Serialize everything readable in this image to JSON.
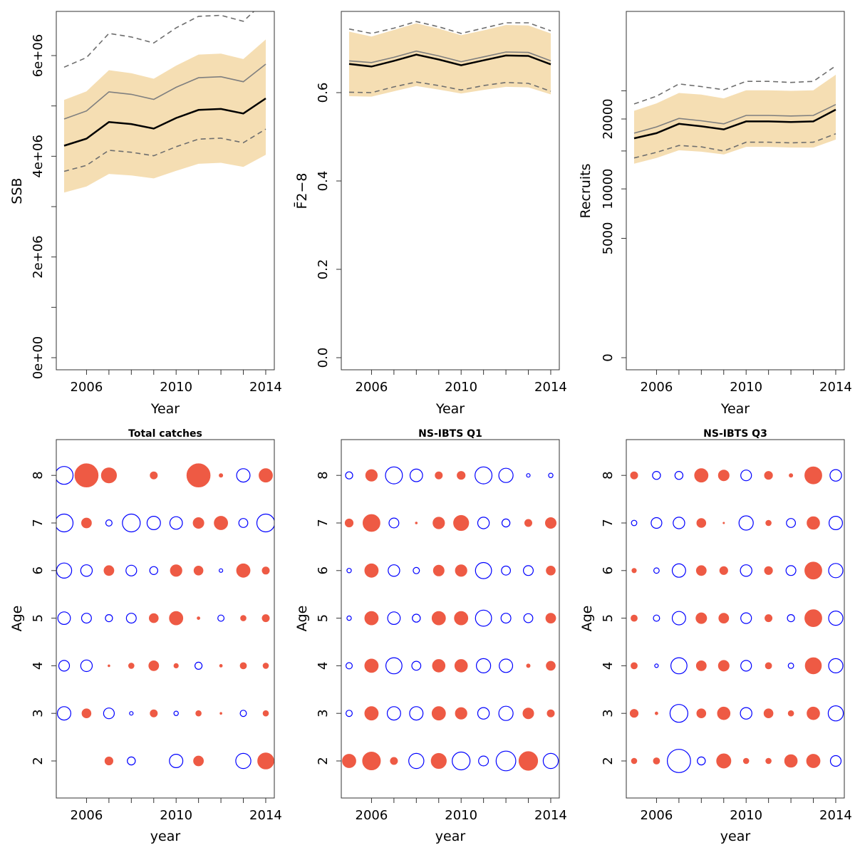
{
  "chart_data": [
    {
      "type": "line",
      "ylabel": "SSB",
      "xlabel": "Year",
      "x": [
        2005,
        2006,
        2007,
        2008,
        2009,
        2010,
        2011,
        2012,
        2013,
        2014
      ],
      "xticks": [
        "2006",
        "2010",
        "2014"
      ],
      "yticks": [
        "0e+00",
        "2e+06",
        "4e+06",
        "6e+06"
      ],
      "ylim": [
        0,
        6800000
      ],
      "band": {
        "color": "#f5deb3",
        "lower": [
          3280000,
          3400000,
          3650000,
          3620000,
          3560000,
          3710000,
          3850000,
          3870000,
          3790000,
          4030000
        ],
        "upper": [
          5120000,
          5290000,
          5710000,
          5650000,
          5540000,
          5800000,
          6020000,
          6040000,
          5930000,
          6320000
        ]
      },
      "series": [
        {
          "role": "estimate",
          "style": "solid-black",
          "values": [
            4210000,
            4350000,
            4680000,
            4640000,
            4550000,
            4760000,
            4920000,
            4940000,
            4850000,
            5150000
          ]
        },
        {
          "role": "grey",
          "style": "solid-grey",
          "values": [
            4740000,
            4900000,
            5280000,
            5230000,
            5130000,
            5370000,
            5560000,
            5580000,
            5480000,
            5830000
          ]
        },
        {
          "role": "upper",
          "style": "dashed",
          "values": [
            5770000,
            5960000,
            6440000,
            6370000,
            6250000,
            6550000,
            6780000,
            6800000,
            6680000,
            7100000
          ]
        },
        {
          "role": "lower",
          "style": "dashed",
          "values": [
            3700000,
            3820000,
            4120000,
            4080000,
            4010000,
            4190000,
            4340000,
            4360000,
            4270000,
            4540000
          ]
        }
      ]
    },
    {
      "type": "line",
      "ylabel": "F̄2−8",
      "xlabel": "Year",
      "x": [
        2005,
        2006,
        2007,
        2008,
        2009,
        2010,
        2011,
        2012,
        2013,
        2014
      ],
      "xticks": [
        "2006",
        "2010",
        "2014"
      ],
      "yticks": [
        "0.0",
        "0.2",
        "0.4",
        "0.6"
      ],
      "ylim": [
        0,
        0.78
      ],
      "band": {
        "color": "#f5deb3",
        "lower": [
          0.592,
          0.591,
          0.603,
          0.615,
          0.607,
          0.598,
          0.606,
          0.613,
          0.612,
          0.596
        ],
        "upper": [
          0.738,
          0.727,
          0.742,
          0.757,
          0.745,
          0.73,
          0.741,
          0.753,
          0.752,
          0.734
        ]
      },
      "series": [
        {
          "role": "estimate",
          "style": "solid-black",
          "values": [
            0.665,
            0.659,
            0.672,
            0.686,
            0.675,
            0.662,
            0.673,
            0.684,
            0.683,
            0.664
          ]
        },
        {
          "role": "grey",
          "style": "solid-grey",
          "values": [
            0.672,
            0.668,
            0.68,
            0.694,
            0.683,
            0.67,
            0.681,
            0.692,
            0.691,
            0.672
          ]
        },
        {
          "role": "upper",
          "style": "dashed",
          "values": [
            0.744,
            0.734,
            0.746,
            0.761,
            0.749,
            0.734,
            0.746,
            0.758,
            0.758,
            0.74
          ]
        },
        {
          "role": "lower",
          "style": "dashed",
          "values": [
            0.601,
            0.6,
            0.613,
            0.624,
            0.616,
            0.606,
            0.616,
            0.623,
            0.621,
            0.603
          ]
        }
      ]
    },
    {
      "type": "line",
      "ylabel": "Recruits",
      "xlabel": "Year",
      "x": [
        2005,
        2006,
        2007,
        2008,
        2009,
        2010,
        2011,
        2012,
        2013,
        2014
      ],
      "xticks": [
        "2006",
        "2010",
        "2014"
      ],
      "yticks": [
        "0",
        "5000",
        "10000",
        "20000"
      ],
      "ylim": [
        0,
        29500
      ],
      "band": {
        "color": "#f5deb3",
        "lower": [
          13200,
          14000,
          15100,
          14900,
          14500,
          15600,
          15600,
          15500,
          15500,
          16700
        ],
        "upper": [
          21400,
          22700,
          24600,
          24300,
          23600,
          25100,
          25100,
          25000,
          25100,
          28100
        ]
      },
      "series": [
        {
          "role": "estimate",
          "style": "solid-black",
          "values": [
            16900,
            17700,
            19200,
            18800,
            18300,
            19600,
            19600,
            19500,
            19600,
            21600
          ]
        },
        {
          "role": "grey",
          "style": "solid-grey",
          "values": [
            17700,
            18700,
            20100,
            19700,
            19200,
            20600,
            20600,
            20500,
            20600,
            22500
          ]
        },
        {
          "role": "upper",
          "style": "dashed",
          "values": [
            22600,
            24000,
            26300,
            25800,
            25200,
            26800,
            26800,
            26600,
            26800,
            29900
          ]
        },
        {
          "role": "lower",
          "style": "dashed",
          "values": [
            14000,
            14800,
            15800,
            15600,
            15000,
            16300,
            16300,
            16200,
            16300,
            17600
          ]
        }
      ]
    },
    {
      "type": "scatter",
      "title": "Total catches",
      "xlabel": "year",
      "ylabel": "Age",
      "x": [
        2005,
        2006,
        2007,
        2008,
        2009,
        2010,
        2011,
        2012,
        2013,
        2014
      ],
      "xticks": [
        "2006",
        "2010",
        "2014"
      ],
      "ages": [
        2,
        3,
        4,
        5,
        6,
        7,
        8
      ],
      "yticks": [
        "2",
        "3",
        "4",
        "5",
        "6",
        "7",
        "8"
      ],
      "positive_color": "#ee5a44",
      "negative_color": "#0000ff",
      "encoding": "bubble residual: filled red = positive, open blue = negative, size = magnitude",
      "residuals": {
        "2": [
          0,
          0,
          0.45,
          -0.45,
          0,
          -0.75,
          0.55,
          0,
          -0.85,
          0.9
        ],
        "3": [
          -0.75,
          0.5,
          -0.6,
          -0.2,
          0.4,
          -0.25,
          0.3,
          0.1,
          -0.35,
          0.3
        ],
        "4": [
          -0.6,
          -0.65,
          0.1,
          0.3,
          0.55,
          0.25,
          -0.4,
          0.15,
          0.35,
          0.3
        ],
        "5": [
          -0.7,
          -0.55,
          -0.4,
          -0.55,
          0.5,
          0.75,
          0.15,
          -0.35,
          0.3,
          0.4
        ],
        "6": [
          -0.85,
          -0.65,
          0.55,
          -0.6,
          -0.45,
          0.65,
          0.5,
          -0.2,
          0.75,
          0.4
        ],
        "7": [
          -1.0,
          0.55,
          -0.35,
          -1.0,
          -0.75,
          -0.7,
          0.6,
          0.75,
          -0.5,
          -1.0
        ],
        "8": [
          -1.0,
          1.3,
          0.85,
          0,
          0.4,
          0.0,
          1.3,
          0.2,
          -0.75,
          0.75
        ]
      }
    },
    {
      "type": "scatter",
      "title": "NS-IBTS Q1",
      "xlabel": "year",
      "ylabel": "Age",
      "x": [
        2005,
        2006,
        2007,
        2008,
        2009,
        2010,
        2011,
        2012,
        2013,
        2014
      ],
      "xticks": [
        "2006",
        "2010",
        "2014"
      ],
      "ages": [
        2,
        3,
        4,
        5,
        6,
        7,
        8
      ],
      "yticks": [
        "2",
        "3",
        "4",
        "5",
        "6",
        "7",
        "8"
      ],
      "positive_color": "#ee5a44",
      "negative_color": "#0000ff",
      "encoding": "bubble residual: filled red = positive, open blue = negative, size = magnitude",
      "residuals": {
        "2": [
          0.75,
          1.0,
          0.4,
          -0.85,
          0.85,
          -1.0,
          -0.55,
          -1.1,
          1.05,
          -0.85
        ],
        "3": [
          -0.35,
          0.75,
          -0.75,
          -0.75,
          0.75,
          0.65,
          -0.65,
          -0.8,
          0.6,
          0.4
        ],
        "4": [
          -0.35,
          0.75,
          -0.9,
          -0.5,
          0.7,
          0.7,
          -0.8,
          -0.75,
          0.2,
          0.5
        ],
        "5": [
          -0.25,
          0.75,
          -0.7,
          -0.45,
          0.75,
          0.75,
          -0.9,
          -0.55,
          -0.5,
          0.55
        ],
        "6": [
          -0.25,
          0.75,
          -0.65,
          -0.35,
          0.6,
          0.65,
          -0.9,
          -0.5,
          -0.55,
          0.5
        ],
        "7": [
          0.45,
          0.95,
          -0.55,
          0.1,
          0.65,
          0.85,
          -0.65,
          -0.45,
          0.4,
          0.6
        ],
        "8": [
          -0.4,
          0.65,
          -0.95,
          -0.7,
          0.4,
          0.45,
          -0.95,
          -0.8,
          -0.2,
          -0.25
        ]
      }
    },
    {
      "type": "scatter",
      "title": "NS-IBTS Q3",
      "xlabel": "year",
      "ylabel": "Age",
      "x": [
        2005,
        2006,
        2007,
        2008,
        2009,
        2010,
        2011,
        2012,
        2013,
        2014
      ],
      "xticks": [
        "2006",
        "2010",
        "2014"
      ],
      "ages": [
        2,
        3,
        4,
        5,
        6,
        7,
        8
      ],
      "yticks": [
        "2",
        "3",
        "4",
        "5",
        "6",
        "7",
        "8"
      ],
      "positive_color": "#ee5a44",
      "negative_color": "#0000ff",
      "encoding": "bubble residual: filled red = positive, open blue = negative, size = magnitude",
      "residuals": {
        "2": [
          0.3,
          0.35,
          -1.3,
          -0.45,
          0.8,
          0.3,
          0.3,
          0.7,
          0.75,
          -0.6
        ],
        "3": [
          0.45,
          0.15,
          -1.0,
          0.5,
          0.7,
          -0.65,
          0.5,
          0.3,
          0.7,
          -0.85
        ],
        "4": [
          0.35,
          -0.2,
          -0.9,
          0.55,
          0.6,
          -0.6,
          0.35,
          -0.3,
          0.9,
          -0.8
        ],
        "5": [
          0.35,
          -0.35,
          -0.75,
          0.6,
          0.55,
          -0.6,
          0.4,
          -0.4,
          0.95,
          -0.8
        ],
        "6": [
          0.25,
          -0.3,
          -0.75,
          0.55,
          0.45,
          -0.65,
          0.45,
          -0.55,
          0.95,
          -0.8
        ],
        "7": [
          -0.3,
          -0.6,
          -0.65,
          0.5,
          0.05,
          -0.8,
          0.3,
          -0.5,
          0.7,
          -0.75
        ],
        "8": [
          0.4,
          -0.45,
          -0.45,
          0.75,
          0.6,
          -0.6,
          0.45,
          0.2,
          0.95,
          -0.65
        ]
      }
    }
  ]
}
